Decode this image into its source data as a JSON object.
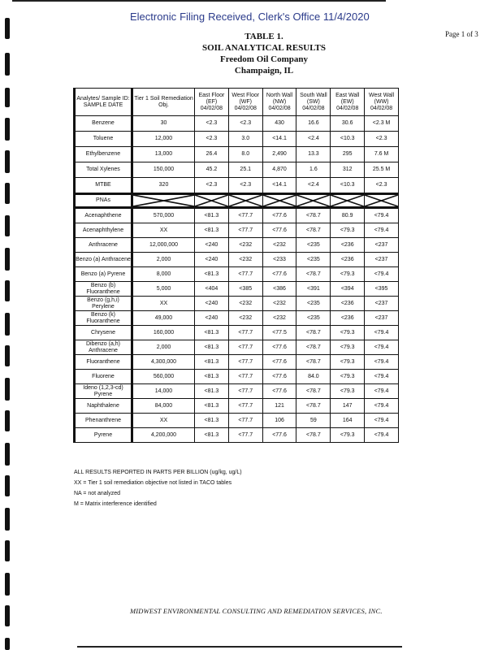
{
  "stamp": {
    "line1": "Electronic Filing: Received, Clerk's Office 11/4/2020",
    "overlap1": "Electronic",
    "overlap2": "Filing",
    "overlap3": "Received, Clerk's Office 11/4/2020"
  },
  "page_label": "Page 1 of 3",
  "title": {
    "line1": "TABLE 1.",
    "line2": "SOIL ANALYTICAL RESULTS",
    "line3": "Freedom Oil Company",
    "line4": "Champaign, IL"
  },
  "table": {
    "headers": [
      "Analytes/ Sample ID: SAMPLE DATE",
      "Tier 1 Soil Remediation Obj.",
      "East Floor (EF) 04/02/08",
      "West Floor (WF) 04/02/08",
      "North Wall (NW) 04/02/08",
      "South Wall (SW) 04/02/08",
      "East Wall (EW) 04/02/08",
      "West Wall (WW) 04/02/08"
    ],
    "btex_rows": [
      [
        "Benzene",
        "30",
        "<2.3",
        "<2.3",
        "430",
        "16.6",
        "30.6",
        "<2.3 M"
      ],
      [
        "Toluene",
        "12,000",
        "<2.3",
        "3.0",
        "<14.1",
        "<2.4",
        "<10.3",
        "<2.3"
      ],
      [
        "Ethylbenzene",
        "13,000",
        "26.4",
        "8.0",
        "2,490",
        "13.3",
        "295",
        "7.6 M"
      ],
      [
        "Total Xylenes",
        "150,000",
        "45.2",
        "25.1",
        "4,870",
        "1.6",
        "312",
        "25.5 M"
      ],
      [
        "MTBE",
        "320",
        "<2.3",
        "<2.3",
        "<14.1",
        "<2.4",
        "<10.3",
        "<2.3"
      ]
    ],
    "pna_label": "PNAs",
    "pna_rows": [
      [
        "Acenaphthene",
        "570,000",
        "<81.3",
        "<77.7",
        "<77.6",
        "<78.7",
        "80.9",
        "<79.4"
      ],
      [
        "Acenaphthylene",
        "XX",
        "<81.3",
        "<77.7",
        "<77.6",
        "<78.7",
        "<79.3",
        "<79.4"
      ],
      [
        "Anthracene",
        "12,000,000",
        "<240",
        "<232",
        "<232",
        "<235",
        "<236",
        "<237"
      ],
      [
        "Benzo (a) Anthracene",
        "2,000",
        "<240",
        "<232",
        "<233",
        "<235",
        "<236",
        "<237"
      ],
      [
        "Benzo (a) Pyrene",
        "8,000",
        "<81.3",
        "<77.7",
        "<77.6",
        "<78.7",
        "<79.3",
        "<79.4"
      ],
      [
        "Benzo (b) Fluoranthene",
        "5,000",
        "<404",
        "<385",
        "<386",
        "<391",
        "<394",
        "<395"
      ],
      [
        "Benzo (g,h,i) Perylene",
        "XX",
        "<240",
        "<232",
        "<232",
        "<235",
        "<236",
        "<237"
      ],
      [
        "Benzo (k) Fluoranthene",
        "49,000",
        "<240",
        "<232",
        "<232",
        "<235",
        "<236",
        "<237"
      ],
      [
        "Chrysene",
        "160,000",
        "<81.3",
        "<77.7",
        "<77.5",
        "<78.7",
        "<79.3",
        "<79.4"
      ],
      [
        "Dibenzo (a,h) Anthracene",
        "2,000",
        "<81.3",
        "<77.7",
        "<77.6",
        "<78.7",
        "<79.3",
        "<79.4"
      ],
      [
        "Fluoranthene",
        "4,300,000",
        "<81.3",
        "<77.7",
        "<77.6",
        "<78.7",
        "<79.3",
        "<79.4"
      ],
      [
        "Fluorene",
        "560,000",
        "<81.3",
        "<77.7",
        "<77.6",
        "84.0",
        "<79.3",
        "<79.4"
      ],
      [
        "Ideno (1,2,3-cd) Pyrene",
        "14,000",
        "<81.3",
        "<77.7",
        "<77.6",
        "<78.7",
        "<79.3",
        "<79.4"
      ],
      [
        "Naphthalene",
        "84,000",
        "<81.3",
        "<77.7",
        "121",
        "<78.7",
        "147",
        "<79.4"
      ],
      [
        "Phenanthrene",
        "XX",
        "<81.3",
        "<77.7",
        "106",
        "59",
        "164",
        "<79.4"
      ],
      [
        "Pyrene",
        "4,200,000",
        "<81.3",
        "<77.7",
        "<77.6",
        "<78.7",
        "<79.3",
        "<79.4"
      ]
    ]
  },
  "notes": [
    "ALL RESULTS REPORTED IN PARTS PER BILLION (ug/kg, ug/L)",
    "XX = Tier 1 soil remediation objective not listed in TACO tables",
    "NA = not analyzed",
    "M = Matrix interference identified"
  ],
  "footer": "MIDWEST ENVIRONMENTAL CONSULTING AND REMEDIATION SERVICES, INC."
}
